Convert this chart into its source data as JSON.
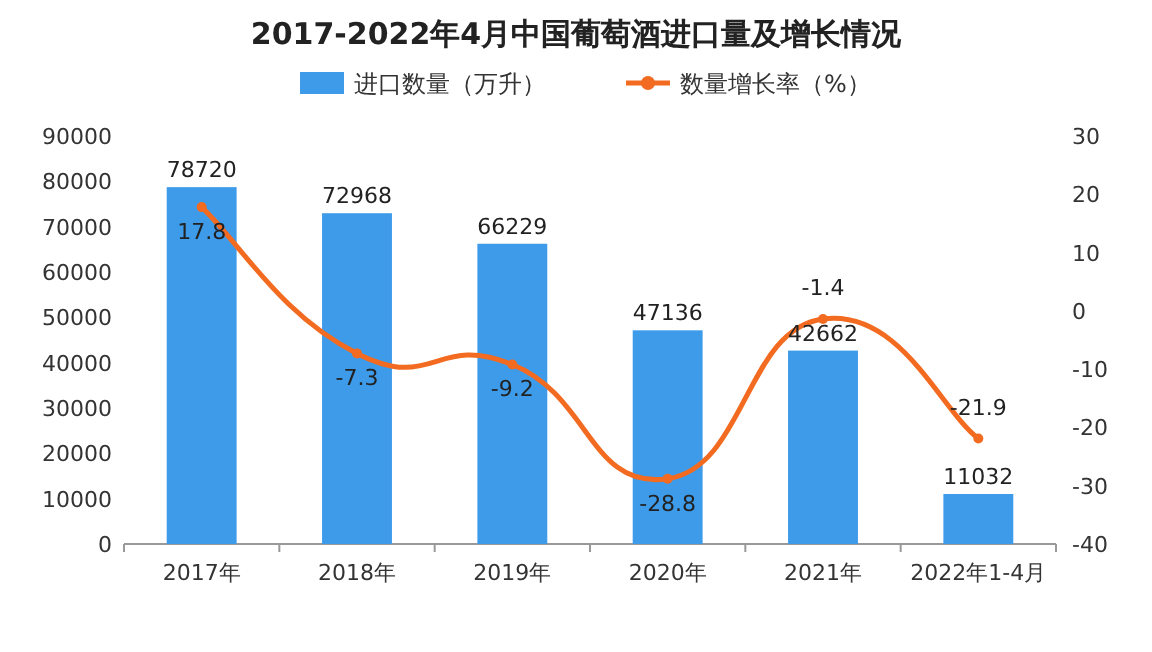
{
  "chart_data": {
    "type": "bar",
    "title": "2017-2022年4月中国葡萄酒进口量及增长情况",
    "categories": [
      "2017年",
      "2018年",
      "2019年",
      "2020年",
      "2021年",
      "2022年1-4月"
    ],
    "series": [
      {
        "name": "进口数量（万升）",
        "color": "#3d9be9",
        "values": [
          78720,
          72968,
          66229,
          47136,
          42662,
          11032
        ]
      },
      {
        "name": "数量增长率（%）",
        "type": "line",
        "axis": "y2",
        "color": "#f26b21",
        "values": [
          17.8,
          -7.3,
          -9.2,
          -28.8,
          -1.4,
          -21.9
        ]
      }
    ],
    "ylim": [
      0,
      90000
    ],
    "yticks": [
      0,
      10000,
      20000,
      30000,
      40000,
      50000,
      60000,
      70000,
      80000,
      90000
    ],
    "y2lim": [
      -40,
      30
    ],
    "y2ticks": [
      -40,
      -30,
      -20,
      -10,
      0,
      10,
      20,
      30
    ],
    "data_labels": true,
    "legend": "top",
    "grid": false,
    "marker": "circle"
  }
}
